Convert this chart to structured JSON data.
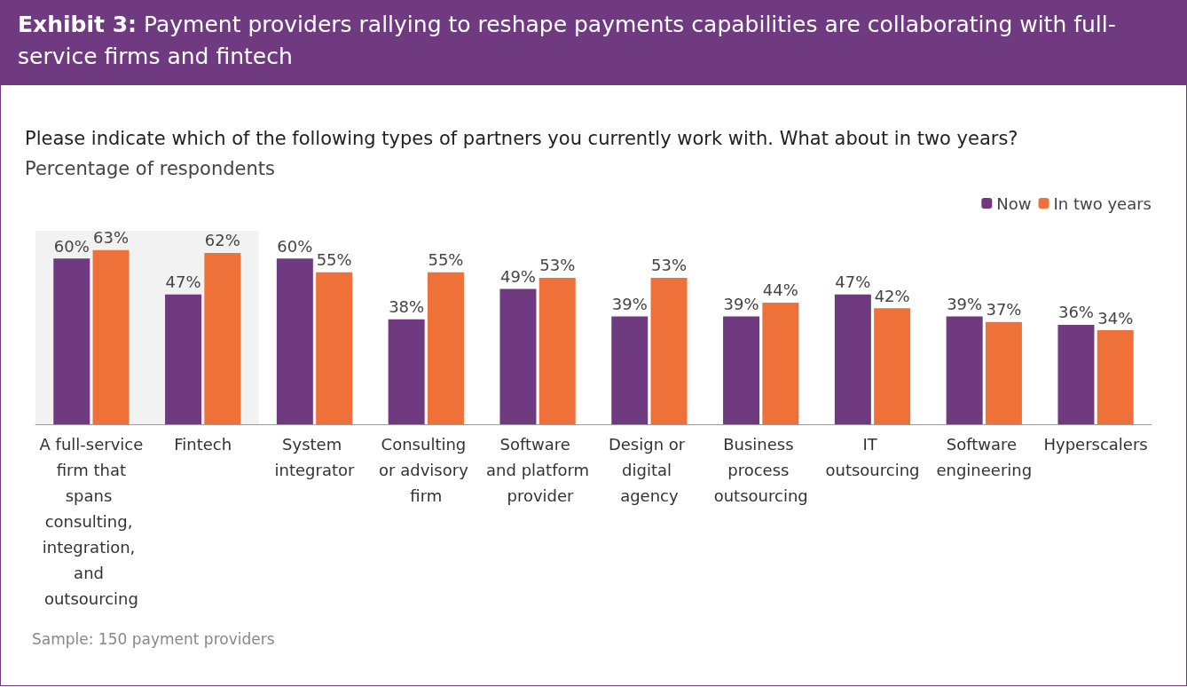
{
  "chart_data": {
    "type": "bar",
    "title": "Exhibit 3: Payment providers rallying to reshape payments capabilities are collaborating with full-service firms and fintech",
    "subtitle": "Please indicate which of the following types of partners you currently work with. What about in two years?",
    "ylabel": "Percentage of respondents",
    "categories": [
      "A full-service firm that spans consulting, integration, and outsourcing",
      "Fintech",
      "System integrator",
      "Consulting or advisory firm",
      "Software and platform provider",
      "Design or digital agency",
      "Business process outsourcing",
      "IT outsourcing",
      "Software engineering",
      "Hyperscalers"
    ],
    "series": [
      {
        "name": "Now",
        "color": "#6f3a80",
        "values": [
          60,
          47,
          60,
          38,
          49,
          39,
          39,
          47,
          39,
          36
        ],
        "value_labels": [
          "60%",
          "47%",
          "60%",
          "38%",
          "49%",
          "39%",
          "39%",
          "47%",
          "39%",
          "36%"
        ]
      },
      {
        "name": "In two years",
        "color": "#ef713a",
        "values": [
          63,
          62,
          55,
          55,
          53,
          53,
          44,
          42,
          37,
          34
        ],
        "value_labels": [
          "63%",
          "62%",
          "55%",
          "55%",
          "53%",
          "53%",
          "44%",
          "42%",
          "37%",
          "34%"
        ]
      }
    ],
    "tick_labels": "x",
    "legend": "top right",
    "bands": [
      {
        "axis": "x",
        "from": "A full-service firm that spans consulting, integration, and outsourcing",
        "to": "Fintech",
        "color": "#f2f2f2"
      }
    ],
    "annotations": [
      "Sample: 150 payment providers"
    ]
  }
}
